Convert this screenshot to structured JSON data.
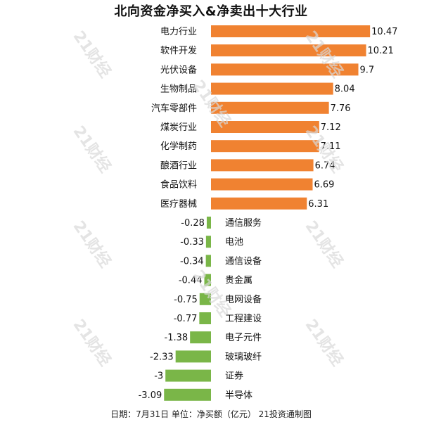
{
  "title": "北向资金净买入&净卖出十大行业",
  "footer": "日期：7月31日 单位：净买额（亿元） 21投资通制图",
  "watermark": "21财经",
  "colors": {
    "positive": "#f08231",
    "negative": "#7ab648"
  },
  "chart_data": {
    "type": "bar",
    "orientation": "horizontal",
    "categories": [
      "电力行业",
      "软件开发",
      "光伏设备",
      "生物制品",
      "汽车零部件",
      "煤炭行业",
      "化学制药",
      "酿酒行业",
      "食品饮料",
      "医疗器械",
      "通信服务",
      "电池",
      "通信设备",
      "贵金属",
      "电网设备",
      "工程建设",
      "电子元件",
      "玻璃玻纤",
      "证券",
      "半导体"
    ],
    "values": [
      10.47,
      10.21,
      9.7,
      8.04,
      7.76,
      7.12,
      7.11,
      6.74,
      6.69,
      6.31,
      -0.28,
      -0.33,
      -0.34,
      -0.44,
      -0.75,
      -0.77,
      -1.38,
      -2.33,
      -3,
      -3.09
    ],
    "labels": [
      "10.47",
      "10.21",
      "9.7",
      "8.04",
      "7.76",
      "7.12",
      "7.11",
      "6.74",
      "6.69",
      "6.31",
      "-0.28",
      "-0.33",
      "-0.34",
      "-0.44",
      "-0.75",
      "-0.77",
      "-1.38",
      "-2.33",
      "-3",
      "-3.09"
    ],
    "title": "北向资金净买入&净卖出十大行业",
    "xlabel": "",
    "ylabel": "",
    "grid": false,
    "legend": "none"
  }
}
